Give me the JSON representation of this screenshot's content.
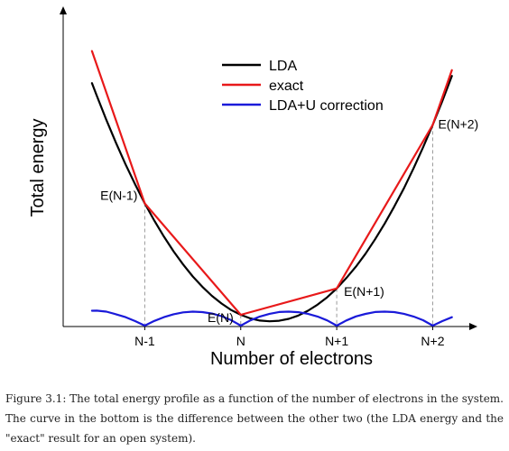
{
  "chart_data": {
    "type": "line",
    "xlabel": "Number of electrons",
    "ylabel": "Total energy",
    "x_ticks": [
      {
        "x": -1,
        "label": "N-1"
      },
      {
        "x": 0,
        "label": "N"
      },
      {
        "x": 1,
        "label": "N+1"
      },
      {
        "x": 2,
        "label": "N+2"
      }
    ],
    "legend_position": "top-center",
    "series": [
      {
        "name": "LDA",
        "color": "#000000",
        "x": [
          -1.55,
          -1.5,
          -1.4,
          -1.3,
          -1.2,
          -1.1,
          -1.0,
          -0.9,
          -0.8,
          -0.7,
          -0.6,
          -0.5,
          -0.4,
          -0.3,
          -0.2,
          -0.1,
          0.0,
          0.1,
          0.2,
          0.3,
          0.4,
          0.5,
          0.6,
          0.7,
          0.8,
          0.9,
          1.0,
          1.1,
          1.2,
          1.3,
          1.4,
          1.5,
          1.6,
          1.7,
          1.8,
          1.9,
          2.0,
          2.1,
          2.2
        ],
        "y": [
          10.16,
          9.64,
          8.62,
          7.67,
          6.77,
          5.93,
          5.14,
          4.42,
          3.75,
          3.14,
          2.59,
          2.09,
          1.66,
          1.28,
          0.96,
          0.69,
          0.49,
          0.34,
          0.25,
          0.22,
          0.24,
          0.32,
          0.46,
          0.66,
          0.91,
          1.22,
          1.59,
          2.02,
          2.5,
          3.04,
          3.64,
          4.3,
          5.01,
          5.77,
          6.6,
          7.48,
          8.42,
          9.41,
          10.46
        ]
      },
      {
        "name": "exact",
        "color": "#e8191a",
        "x": [
          -1.55,
          -1.0,
          0.0,
          1.0,
          2.0,
          2.2
        ],
        "y": [
          11.5,
          5.14,
          0.49,
          1.59,
          8.42,
          10.7
        ]
      },
      {
        "name": "LDA+U correction",
        "color": "#1a1ad9",
        "x": [
          -1.55,
          -1.5,
          -1.4,
          -1.3,
          -1.2,
          -1.1,
          -1.0,
          -0.9,
          -0.8,
          -0.7,
          -0.6,
          -0.5,
          -0.4,
          -0.3,
          -0.2,
          -0.1,
          0.0,
          0.1,
          0.2,
          0.3,
          0.4,
          0.5,
          0.6,
          0.7,
          0.8,
          0.9,
          1.0,
          1.1,
          1.2,
          1.3,
          1.4,
          1.5,
          1.6,
          1.7,
          1.8,
          1.9,
          2.0,
          2.1,
          2.2
        ],
        "y": [
          1.24,
          1.25,
          1.17,
          0.95,
          0.71,
          0.38,
          0.0,
          0.39,
          0.71,
          0.95,
          1.11,
          1.17,
          1.13,
          1.01,
          0.79,
          0.46,
          0.0,
          0.44,
          0.76,
          0.99,
          1.14,
          1.17,
          1.12,
          0.99,
          0.76,
          0.44,
          0.0,
          0.43,
          0.77,
          0.98,
          1.14,
          1.17,
          1.13,
          0.99,
          0.76,
          0.45,
          0.0,
          0.38,
          0.7
        ]
      }
    ],
    "point_labels": [
      {
        "x": -1,
        "text": "E(N-1)"
      },
      {
        "x": 0,
        "text": "E(N)"
      },
      {
        "x": 1,
        "text": "E(N+1)"
      },
      {
        "x": 2,
        "text": "E(N+2)"
      }
    ],
    "xlim": [
      -1.85,
      2.4
    ],
    "ylim_energy": [
      0,
      12.5
    ],
    "ylim_correction": [
      0,
      1.6
    ],
    "grid": false,
    "dashed_drop_lines": true
  },
  "caption": "Figure 3.1: The total energy profile as a function of the number of electrons in the system. The curve in the bottom is the difference between the other two (the LDA energy and the \"exact\" result for an open system)."
}
